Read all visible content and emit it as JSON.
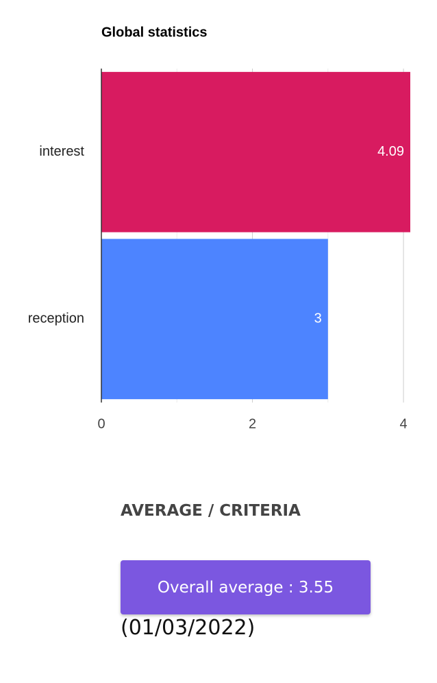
{
  "chart_data": {
    "type": "bar",
    "orientation": "horizontal",
    "title": "Global statistics",
    "categories": [
      "interest",
      "reception"
    ],
    "values": [
      4.09,
      3
    ],
    "colors": [
      "#d81b60",
      "#4d84ff"
    ],
    "xlim": [
      0,
      4.09
    ],
    "xticks": [
      0,
      2,
      4
    ],
    "minor_xticks": [
      1,
      3
    ],
    "grid": true
  },
  "section": {
    "heading": "AVERAGE / CRITERIA",
    "button": "Overall average : 3.55",
    "date": "(01/03/2022)"
  }
}
